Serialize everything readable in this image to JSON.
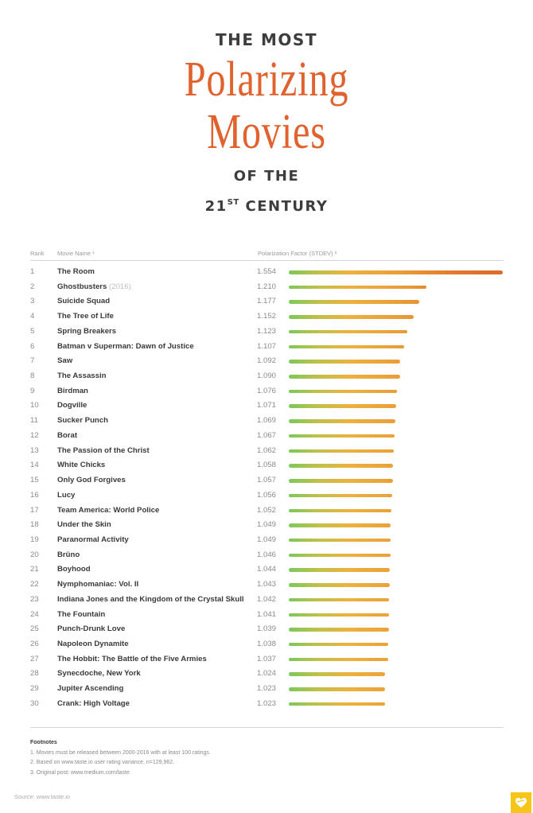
{
  "title": {
    "line1": "THE MOST",
    "line2": "Polarizing",
    "line3": "Movies",
    "line4": "OF THE",
    "line5_number": "21",
    "line5_sup": "ST",
    "line5_rest": "CENTURY"
  },
  "table": {
    "headers": {
      "rank": "Rank",
      "name": "Movie Name ¹",
      "factor": "Polarization Factor (STDEV) ²"
    },
    "rows": [
      {
        "rank": "1",
        "name": "The Room",
        "note": "",
        "value": "1.554"
      },
      {
        "rank": "2",
        "name": "Ghostbusters",
        "note": "(2016)",
        "value": "1.210"
      },
      {
        "rank": "3",
        "name": "Suicide Squad",
        "note": "",
        "value": "1.177"
      },
      {
        "rank": "4",
        "name": "The Tree of Life",
        "note": "",
        "value": "1.152"
      },
      {
        "rank": "5",
        "name": "Spring Breakers",
        "note": "",
        "value": "1.123"
      },
      {
        "rank": "6",
        "name": "Batman v Superman: Dawn of Justice",
        "note": "",
        "value": "1.107"
      },
      {
        "rank": "7",
        "name": "Saw",
        "note": "",
        "value": "1.092"
      },
      {
        "rank": "8",
        "name": "The Assassin",
        "note": "",
        "value": "1.090"
      },
      {
        "rank": "9",
        "name": "Birdman",
        "note": "",
        "value": "1.076"
      },
      {
        "rank": "10",
        "name": "Dogville",
        "note": "",
        "value": "1.071"
      },
      {
        "rank": "11",
        "name": "Sucker Punch",
        "note": "",
        "value": "1.069"
      },
      {
        "rank": "12",
        "name": "Borat",
        "note": "",
        "value": "1.067"
      },
      {
        "rank": "13",
        "name": "The Passion of the Christ",
        "note": "",
        "value": "1.062"
      },
      {
        "rank": "14",
        "name": "White Chicks",
        "note": "",
        "value": "1.058"
      },
      {
        "rank": "15",
        "name": "Only God Forgives",
        "note": "",
        "value": "1.057"
      },
      {
        "rank": "16",
        "name": "Lucy",
        "note": "",
        "value": "1.056"
      },
      {
        "rank": "17",
        "name": "Team America: World Police",
        "note": "",
        "value": "1.052"
      },
      {
        "rank": "18",
        "name": "Under the Skin",
        "note": "",
        "value": "1.049"
      },
      {
        "rank": "19",
        "name": "Paranormal Activity",
        "note": "",
        "value": "1.049"
      },
      {
        "rank": "20",
        "name": "Brüno",
        "note": "",
        "value": "1.046"
      },
      {
        "rank": "21",
        "name": "Boyhood",
        "note": "",
        "value": "1.044"
      },
      {
        "rank": "22",
        "name": "Nymphomaniac: Vol. II",
        "note": "",
        "value": "1.043"
      },
      {
        "rank": "23",
        "name": "Indiana Jones and the Kingdom of the Crystal Skull",
        "note": "",
        "value": "1.042"
      },
      {
        "rank": "24",
        "name": "The Fountain",
        "note": "",
        "value": "1.041"
      },
      {
        "rank": "25",
        "name": "Punch-Drunk Love",
        "note": "",
        "value": "1.039"
      },
      {
        "rank": "26",
        "name": "Napoleon Dynamite",
        "note": "",
        "value": "1.038"
      },
      {
        "rank": "27",
        "name": "The Hobbit: The Battle of the Five Armies",
        "note": "",
        "value": "1.037"
      },
      {
        "rank": "28",
        "name": "Synecdoche, New York",
        "note": "",
        "value": "1.024"
      },
      {
        "rank": "29",
        "name": "Jupiter Ascending",
        "note": "",
        "value": "1.023"
      },
      {
        "rank": "30",
        "name": "Crank: High Voltage",
        "note": "",
        "value": "1.023"
      }
    ]
  },
  "footnotes": {
    "title": "Footnotes",
    "items": [
      "1. Movies must be released between 2000-2016 with at least 100 ratings.",
      "2. Based on www.taste.io user rating variance, n=129,962.",
      "3. Original post: www.medium.com/taste"
    ]
  },
  "source": "Source: www.taste.io",
  "logo": {
    "icon": "heart-logo-icon",
    "color": "#f5c518"
  },
  "colors": {
    "title_accent": "#e0622e",
    "bar_start": "#7ac95a",
    "bar_mid": "#ecb23c",
    "bar_end": "#dd6a2c"
  },
  "chart_data": {
    "type": "bar",
    "orientation": "horizontal",
    "title": "The Most Polarizing Movies of the 21st Century",
    "xlabel": "Polarization Factor (STDEV)",
    "ylabel": "Movie Name",
    "categories": [
      "The Room",
      "Ghostbusters (2016)",
      "Suicide Squad",
      "The Tree of Life",
      "Spring Breakers",
      "Batman v Superman: Dawn of Justice",
      "Saw",
      "The Assassin",
      "Birdman",
      "Dogville",
      "Sucker Punch",
      "Borat",
      "The Passion of the Christ",
      "White Chicks",
      "Only God Forgives",
      "Lucy",
      "Team America: World Police",
      "Under the Skin",
      "Paranormal Activity",
      "Brüno",
      "Boyhood",
      "Nymphomaniac: Vol. II",
      "Indiana Jones and the Kingdom of the Crystal Skull",
      "The Fountain",
      "Punch-Drunk Love",
      "Napoleon Dynamite",
      "The Hobbit: The Battle of the Five Armies",
      "Synecdoche, New York",
      "Jupiter Ascending",
      "Crank: High Voltage"
    ],
    "values": [
      1.554,
      1.21,
      1.177,
      1.152,
      1.123,
      1.107,
      1.092,
      1.09,
      1.076,
      1.071,
      1.069,
      1.067,
      1.062,
      1.058,
      1.057,
      1.056,
      1.052,
      1.049,
      1.049,
      1.046,
      1.044,
      1.043,
      1.042,
      1.041,
      1.039,
      1.038,
      1.037,
      1.024,
      1.023,
      1.023
    ],
    "grid": false,
    "legend": "none"
  }
}
